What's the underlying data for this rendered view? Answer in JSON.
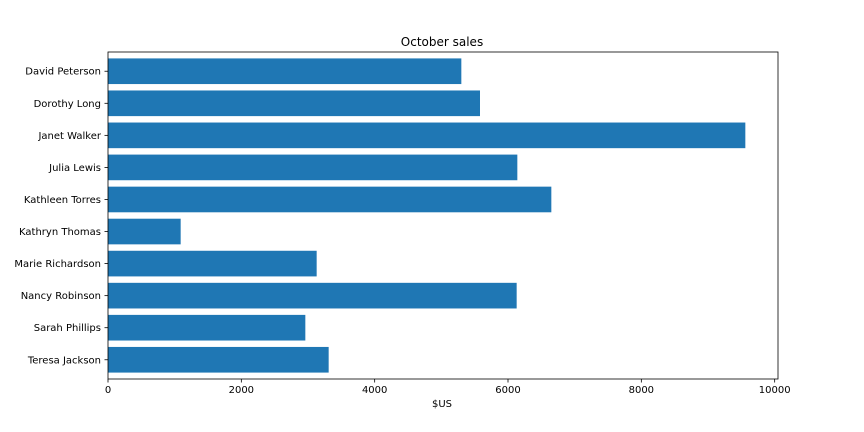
{
  "chart_data": {
    "type": "bar",
    "orientation": "horizontal",
    "title": "October sales",
    "xlabel": "$US",
    "ylabel": "",
    "categories": [
      "David Peterson",
      "Dorothy Long",
      "Janet Walker",
      "Julia Lewis",
      "Kathleen Torres",
      "Kathryn Thomas",
      "Marie Richardson",
      "Nancy Robinson",
      "Sarah Phillips",
      "Teresa Jackson"
    ],
    "values": [
      5300,
      5580,
      9560,
      6140,
      6650,
      1090,
      3130,
      6130,
      2960,
      3310
    ],
    "xlim": [
      0,
      10050
    ],
    "xticks": [
      0,
      2000,
      4000,
      6000,
      8000,
      10000
    ],
    "grid": false,
    "bar_color": "#1f77b4"
  }
}
